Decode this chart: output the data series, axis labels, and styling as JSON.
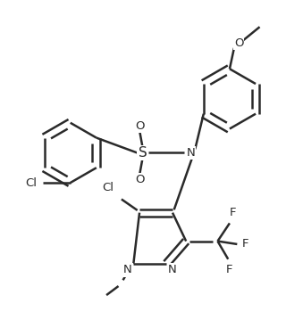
{
  "background_color": "#ffffff",
  "bond_color": "#2a2a2a",
  "line_width": 1.8,
  "figsize": [
    3.39,
    3.68
  ],
  "dpi": 100,
  "xlim": [
    0,
    10
  ],
  "ylim": [
    0,
    10.85
  ]
}
